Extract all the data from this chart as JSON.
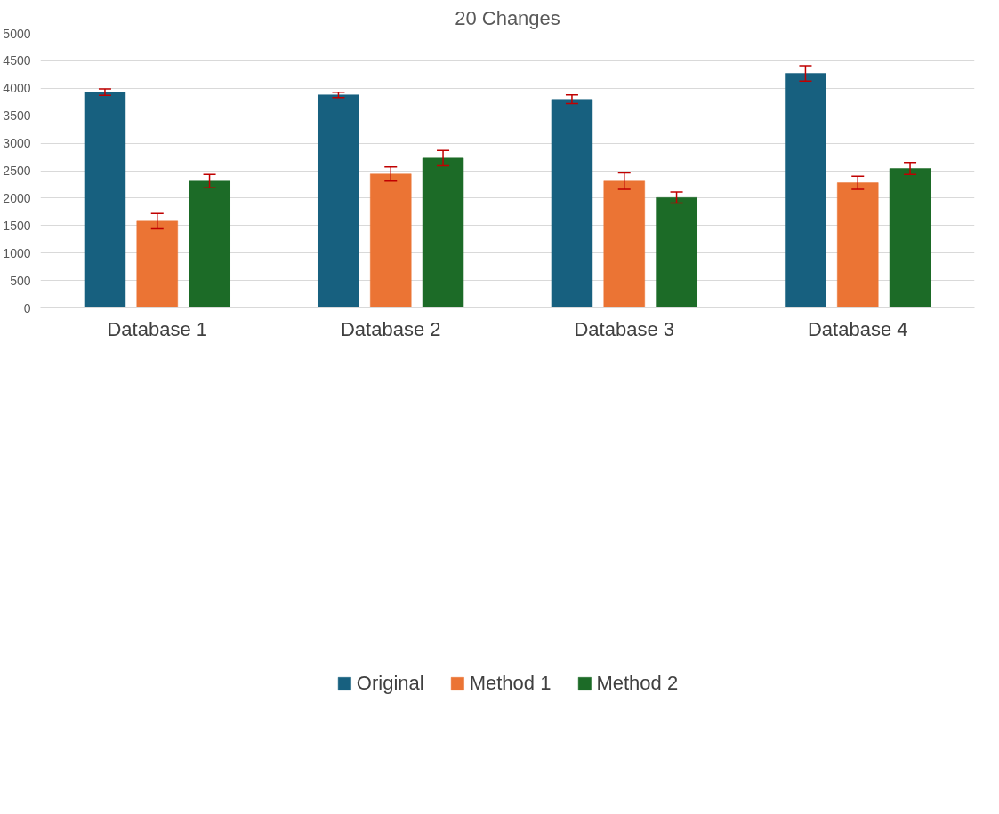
{
  "chart_data": {
    "type": "bar",
    "title": "20 Changes",
    "categories": [
      "Database 1",
      "Database 2",
      "Database 3",
      "Database 4"
    ],
    "series": [
      {
        "name": "Original",
        "color": "#17607f",
        "values": [
          3930,
          3880,
          3800,
          4270
        ],
        "errors": [
          60,
          50,
          80,
          140
        ]
      },
      {
        "name": "Method 1",
        "color": "#eb7434",
        "values": [
          1580,
          2440,
          2310,
          2280
        ],
        "errors": [
          140,
          130,
          150,
          120
        ]
      },
      {
        "name": "Method 2",
        "color": "#1c6b27",
        "values": [
          2310,
          2730,
          2010,
          2540
        ],
        "errors": [
          120,
          140,
          100,
          110
        ]
      }
    ],
    "ylim": [
      0,
      5000
    ],
    "yticks": [
      0,
      500,
      1000,
      1500,
      2000,
      2500,
      3000,
      3500,
      4000,
      4500,
      5000
    ],
    "grid": "y",
    "legend": "bottom"
  }
}
